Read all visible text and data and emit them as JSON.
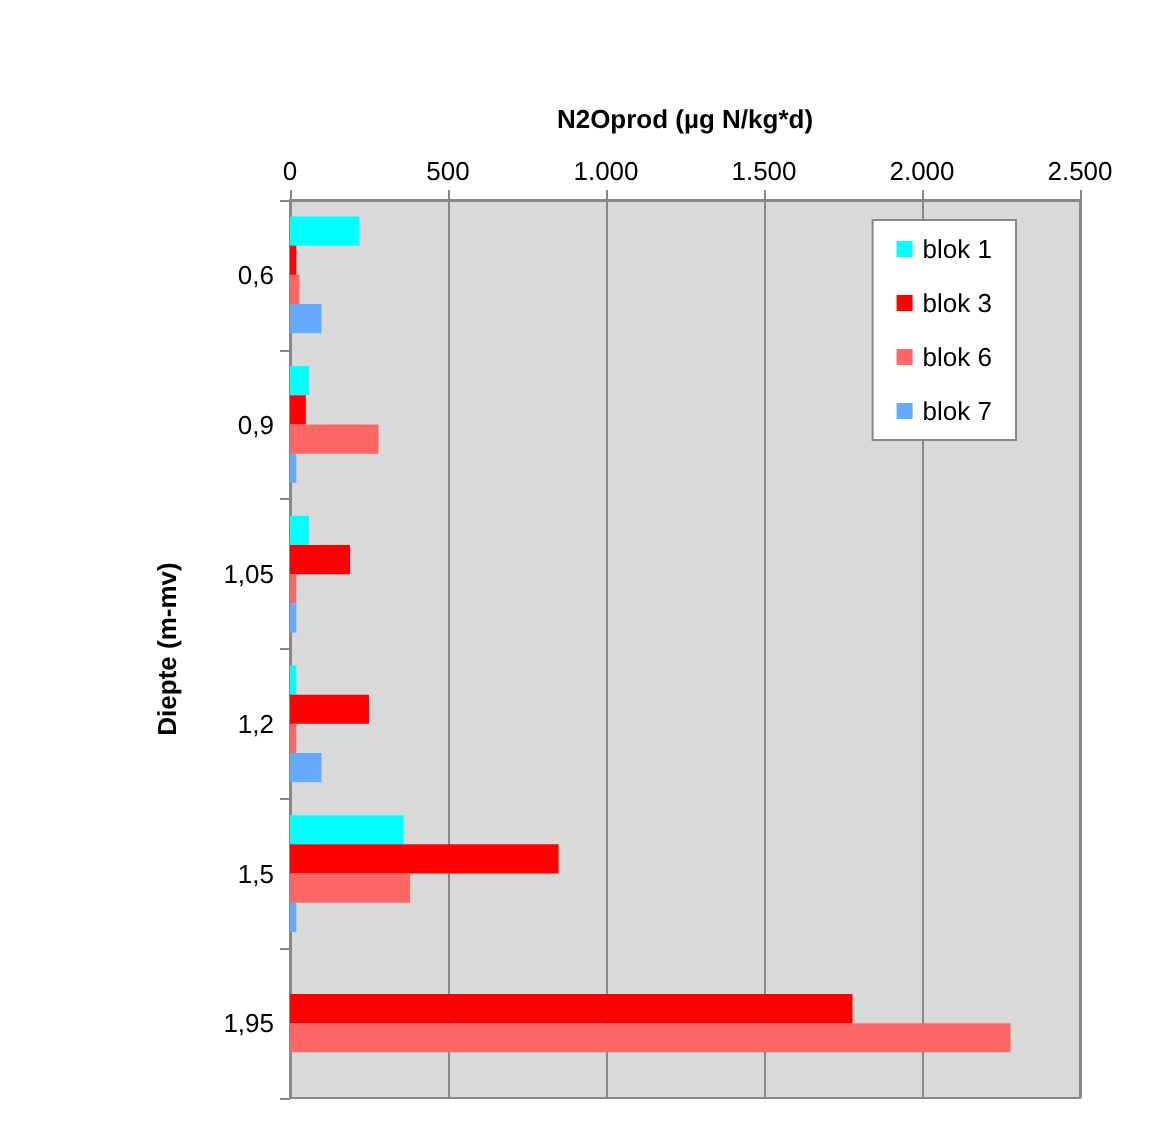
{
  "chart_data": {
    "type": "bar",
    "orientation": "horizontal",
    "xlabel": "N2Oprod (µg N/kg*d)",
    "ylabel": "Diepte (m-mv)",
    "categories": [
      "0,6",
      "0,9",
      "1,05",
      "1,2",
      "1,5",
      "1,95"
    ],
    "series": [
      {
        "name": "blok 1",
        "color": "#00ffff",
        "values": [
          220,
          60,
          60,
          20,
          360,
          0
        ]
      },
      {
        "name": "blok 3",
        "color": "#ff0000",
        "values": [
          20,
          50,
          190,
          250,
          850,
          1780
        ]
      },
      {
        "name": "blok 6",
        "color": "#ff6666",
        "values": [
          30,
          280,
          20,
          20,
          380,
          2280
        ]
      },
      {
        "name": "blok 7",
        "color": "#66aaff",
        "values": [
          100,
          20,
          20,
          100,
          20,
          0
        ]
      }
    ],
    "xlim": [
      0,
      2500
    ],
    "xticks": [
      0,
      500,
      {
        "value": 1000,
        "label": "1.000"
      },
      {
        "value": 1500,
        "label": "1.500"
      },
      {
        "value": 2000,
        "label": "2.000"
      },
      {
        "value": 2500,
        "label": "2.500"
      }
    ],
    "grid": "x",
    "legend": "top right"
  }
}
